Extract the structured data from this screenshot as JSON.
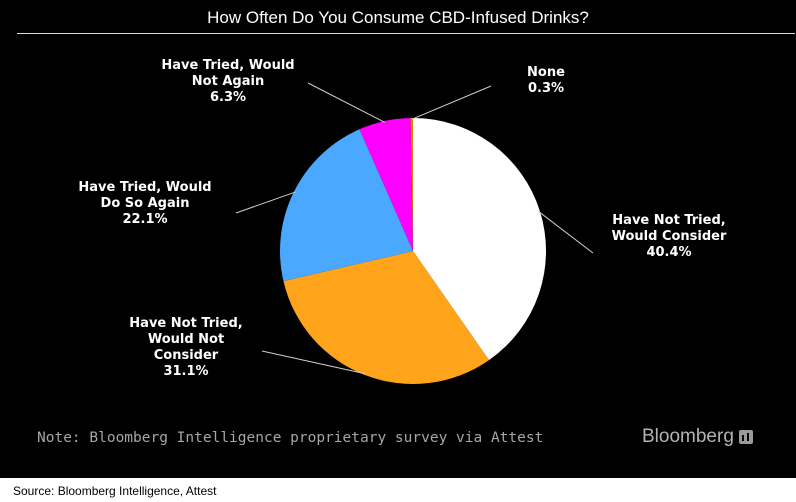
{
  "chart_data": {
    "type": "pie",
    "title": "How Often Do You Consume CBD-Infused Drinks?",
    "slices": [
      {
        "label_lines": [
          "Have Not Tried,",
          "Would Consider"
        ],
        "value_text": "40.4%",
        "value": 40.4,
        "color": "#ffffff"
      },
      {
        "label_lines": [
          "Have Not Tried,",
          "Would Not",
          "Consider"
        ],
        "value_text": "31.1%",
        "value": 31.1,
        "color": "#ffa41b"
      },
      {
        "label_lines": [
          "Have Tried, Would",
          "Do So Again"
        ],
        "value_text": "22.1%",
        "value": 22.1,
        "color": "#4aa8ff"
      },
      {
        "label_lines": [
          "Have Tried, Would",
          "Not Again"
        ],
        "value_text": "6.3%",
        "value": 6.3,
        "color": "#ff00ff"
      },
      {
        "label_lines": [
          "None"
        ],
        "value_text": "0.3%",
        "value": 0.3,
        "color": "#e07b00"
      }
    ]
  },
  "note": "Note: Bloomberg Intelligence proprietary survey via Attest",
  "brand": "Bloomberg",
  "brand_icon": "bloomberg-terminal-icon",
  "source": "Source: Bloomberg Intelligence, Attest"
}
